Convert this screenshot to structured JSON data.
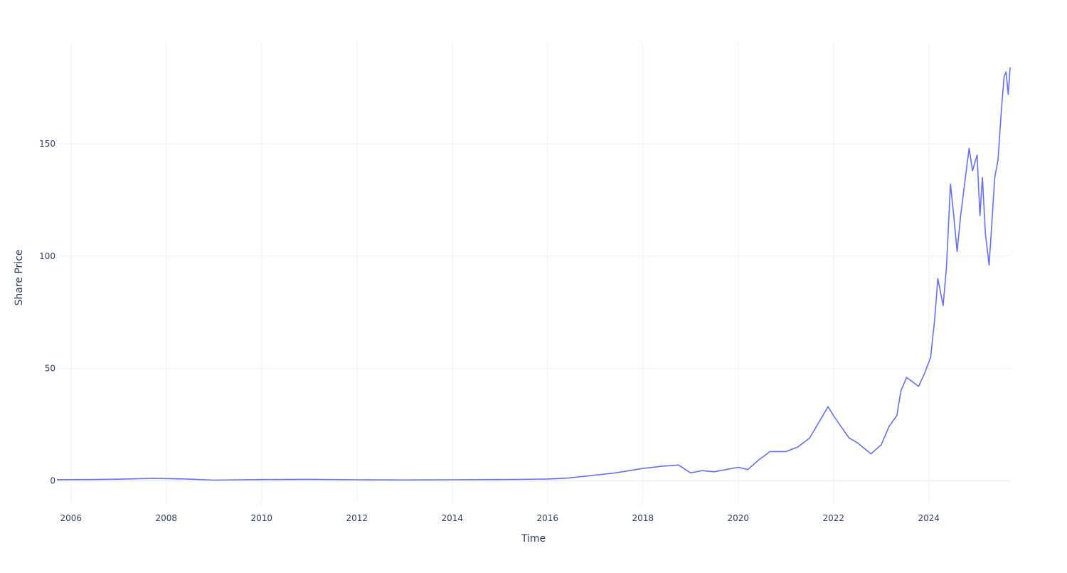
{
  "chart_data": {
    "type": "line",
    "title": "",
    "xlabel": "Time",
    "ylabel": "Share Price",
    "grid": true,
    "legend": "none",
    "line_color": "#636efa",
    "xlim": [
      "2005-09-15",
      "2025-09-15"
    ],
    "ylim": [
      -10,
      195
    ],
    "x_ticks": [
      {
        "value": "2006-01-01",
        "label": "2006"
      },
      {
        "value": "2008-01-01",
        "label": "2008"
      },
      {
        "value": "2010-01-01",
        "label": "2010"
      },
      {
        "value": "2012-01-01",
        "label": "2012"
      },
      {
        "value": "2014-01-01",
        "label": "2014"
      },
      {
        "value": "2016-01-01",
        "label": "2016"
      },
      {
        "value": "2018-01-01",
        "label": "2018"
      },
      {
        "value": "2020-01-01",
        "label": "2020"
      },
      {
        "value": "2022-01-01",
        "label": "2022"
      },
      {
        "value": "2024-01-01",
        "label": "2024"
      }
    ],
    "y_ticks": [
      {
        "value": 0,
        "label": "0"
      },
      {
        "value": 50,
        "label": "50"
      },
      {
        "value": 100,
        "label": "100"
      },
      {
        "value": 150,
        "label": "150"
      }
    ],
    "series": [
      {
        "name": "",
        "x": [
          "2005-09-15",
          "2006-06-01",
          "2007-01-01",
          "2007-10-01",
          "2008-06-01",
          "2009-01-01",
          "2010-01-01",
          "2011-01-01",
          "2012-01-01",
          "2013-01-01",
          "2014-01-01",
          "2015-01-01",
          "2015-06-01",
          "2016-01-01",
          "2016-06-01",
          "2017-01-01",
          "2017-06-01",
          "2018-01-01",
          "2018-06-01",
          "2018-10-01",
          "2019-01-01",
          "2019-04-01",
          "2019-07-01",
          "2020-01-01",
          "2020-03-15",
          "2020-06-01",
          "2020-09-01",
          "2021-01-01",
          "2021-04-01",
          "2021-07-01",
          "2021-11-20",
          "2022-01-01",
          "2022-03-01",
          "2022-05-01",
          "2022-07-01",
          "2022-10-15",
          "2023-01-01",
          "2023-03-01",
          "2023-05-01",
          "2023-06-01",
          "2023-07-15",
          "2023-09-01",
          "2023-10-15",
          "2023-12-01",
          "2024-01-15",
          "2024-02-15",
          "2024-03-10",
          "2024-04-20",
          "2024-05-15",
          "2024-06-15",
          "2024-07-10",
          "2024-08-05",
          "2024-09-01",
          "2024-10-01",
          "2024-11-05",
          "2024-12-01",
          "2025-01-05",
          "2025-01-27",
          "2025-02-15",
          "2025-03-10",
          "2025-04-07",
          "2025-04-25",
          "2025-05-20",
          "2025-06-15",
          "2025-07-10",
          "2025-08-01",
          "2025-08-15",
          "2025-09-01",
          "2025-09-15"
        ],
        "y": [
          0.5,
          0.55,
          0.7,
          1.1,
          0.8,
          0.3,
          0.55,
          0.65,
          0.45,
          0.35,
          0.45,
          0.55,
          0.6,
          0.8,
          1.2,
          2.5,
          3.5,
          5.5,
          6.5,
          7.0,
          3.5,
          4.5,
          4.0,
          6.0,
          5.0,
          9.0,
          13.0,
          13.0,
          15.0,
          19.0,
          33.0,
          29.0,
          24.0,
          19.0,
          17.0,
          12.0,
          16.0,
          24.0,
          29.0,
          40.0,
          46.0,
          44.0,
          42.0,
          48.0,
          55.0,
          72.0,
          90.0,
          78.0,
          95.0,
          132.0,
          118.0,
          102.0,
          118.0,
          132.0,
          148.0,
          138.0,
          145.0,
          118.0,
          135.0,
          110.0,
          96.0,
          112.0,
          135.0,
          143.0,
          165.0,
          180.0,
          182.0,
          172.0,
          184.0
        ]
      }
    ]
  }
}
